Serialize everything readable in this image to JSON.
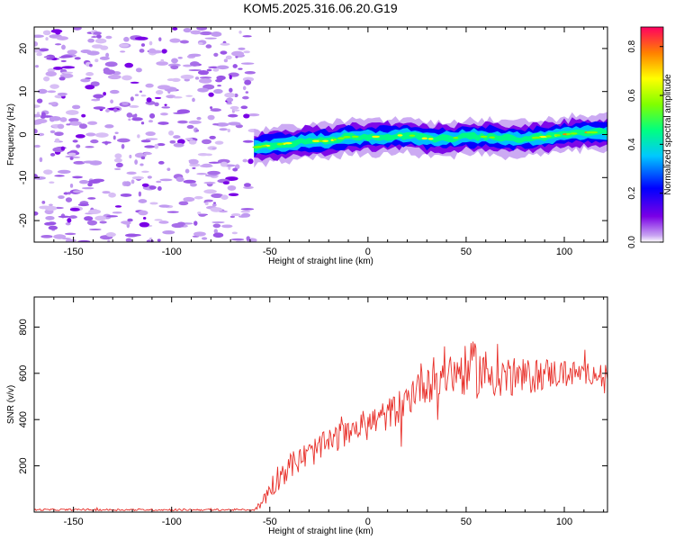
{
  "title": "KOM5.2025.316.06.20.G19",
  "colors": {
    "snr_line": "#e8302a",
    "axis": "#000000"
  },
  "chart_data": [
    {
      "type": "heatmap",
      "xlabel": "Height of straight line (km)",
      "ylabel": "Frequency (Hz)",
      "xlim": [
        -170,
        122
      ],
      "ylim": [
        -25,
        25
      ],
      "xticks": [
        -150,
        -100,
        -50,
        0,
        50,
        100
      ],
      "yticks": [
        -20,
        -10,
        0,
        10,
        20
      ],
      "colorbar": {
        "label": "Normalized spectral amplitude",
        "range": [
          0.0,
          0.88
        ],
        "ticks": [
          0.0,
          0.2,
          0.4,
          0.6,
          0.8
        ]
      },
      "noise_region_end_x": -58,
      "signal_track": {
        "x": [
          -58,
          -50,
          -40,
          -30,
          -20,
          -10,
          0,
          10,
          20,
          30,
          40,
          50,
          60,
          70,
          80,
          90,
          100,
          110,
          120
        ],
        "frequency": [
          -3,
          -2.5,
          -2,
          -1.5,
          -1.5,
          -0.5,
          -0.5,
          -0.5,
          0,
          -1,
          -1,
          -0.5,
          -0.5,
          -1,
          -1,
          -0.5,
          0,
          0.5,
          0.5
        ]
      }
    },
    {
      "type": "line",
      "xlabel": "Height of straight line (km)",
      "ylabel": "SNR (v/v)",
      "xlim": [
        -170,
        122
      ],
      "ylim": [
        0,
        930
      ],
      "xticks": [
        -150,
        -100,
        -50,
        0,
        50,
        100
      ],
      "yticks": [
        200,
        400,
        600,
        800
      ],
      "series": [
        {
          "name": "SNR",
          "x": [
            -170,
            -150,
            -100,
            -58,
            -55,
            -50,
            -45,
            -40,
            -30,
            -20,
            -10,
            0,
            10,
            20,
            25,
            30,
            40,
            50,
            55,
            60,
            70,
            80,
            90,
            100,
            110,
            122
          ],
          "mean": [
            10,
            10,
            10,
            10,
            30,
            100,
            160,
            200,
            250,
            300,
            350,
            380,
            420,
            480,
            550,
            570,
            600,
            610,
            620,
            600,
            590,
            580,
            600,
            600,
            600,
            600
          ],
          "spread": [
            4,
            4,
            4,
            4,
            20,
            50,
            60,
            60,
            60,
            60,
            60,
            70,
            70,
            80,
            90,
            100,
            100,
            110,
            130,
            110,
            90,
            80,
            70,
            60,
            50,
            40
          ]
        }
      ]
    }
  ]
}
